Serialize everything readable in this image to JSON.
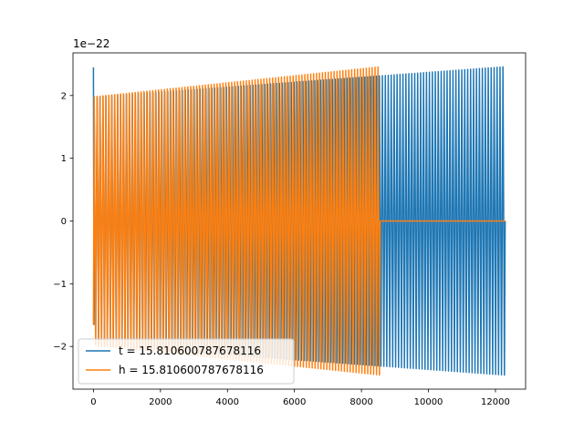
{
  "chart_data": {
    "type": "line",
    "title": "",
    "xlabel": "",
    "ylabel": "",
    "y_scale_label": "1e−22",
    "xlim": [
      -610,
      12900
    ],
    "ylim": [
      -2.68,
      2.68
    ],
    "xticks": [
      0,
      2000,
      4000,
      6000,
      8000,
      10000,
      12000
    ],
    "xtick_labels": [
      "0",
      "2000",
      "4000",
      "6000",
      "8000",
      "10000",
      "12000"
    ],
    "yticks": [
      -2,
      -1,
      0,
      1,
      2
    ],
    "ytick_labels": [
      "−2",
      "−1",
      "0",
      "1",
      "2"
    ],
    "grid": false,
    "legend_position": "lower-left",
    "series": [
      {
        "name": "t = 15.810600787678116",
        "color": "#1f77b4",
        "x_start": 0,
        "x_end": 12290,
        "envelope_start": 1.98,
        "envelope_end": 2.46,
        "initial_peak": 2.45,
        "initial_trough": -1.65,
        "cycles": 140
      },
      {
        "name": "h = 15.810600787678116",
        "color": "#ff7f0e",
        "x_start": 0,
        "x_end": 8560,
        "envelope_start": 1.98,
        "envelope_end": 2.46,
        "initial_trough": -1.65,
        "flat_after": 0,
        "flat_until": 12290,
        "cycles": 98
      }
    ]
  }
}
